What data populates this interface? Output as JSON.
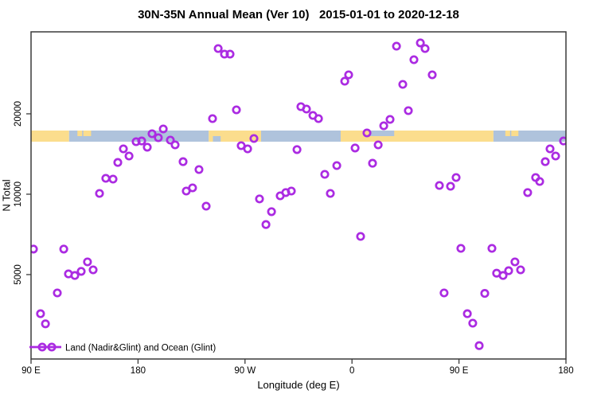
{
  "header": {
    "title": "30N-35N Annual Mean (Ver 10)   2015-01-01 to 2020-12-18"
  },
  "chart_data": {
    "type": "scatter",
    "title": "30N-35N Annual Mean (Ver 10)   2015-01-01 to 2020-12-18",
    "xlabel": "Longitude (deg E)",
    "ylabel": "N Total",
    "x_axis": {
      "min": 90,
      "max": 540,
      "ticks": [
        90,
        180,
        270,
        360,
        450,
        540
      ],
      "tick_labels": [
        "90 E",
        "180",
        "90 W",
        "0",
        "90 E",
        "180"
      ],
      "note": "longitude axis wraps: 90E to 180 to 90W to 0 to 90E to 180"
    },
    "y_axis": {
      "scale": "log",
      "min": 2415,
      "max": 40550,
      "ticks": [
        5000,
        10000,
        20000
      ],
      "tick_labels": [
        "5000",
        "10000",
        "20000"
      ]
    },
    "legend": {
      "label": "Land (Nadir&Glint) and Ocean (Glint)",
      "position": "bottom-left"
    },
    "colors": {
      "marker": "#AB2BE2",
      "land_band": "#FBDD8D",
      "ocean_band": "#AFC3DC",
      "frame": "#3a3a3a"
    },
    "map_band": {
      "description": "land/ocean strip for 30N-35N drawn across plot",
      "segments": [
        {
          "lon0": 90,
          "lon1": 122,
          "surface": "land",
          "half": "full"
        },
        {
          "lon0": 122,
          "lon1": 239.5,
          "surface": "ocean",
          "half": "full"
        },
        {
          "lon0": 239.5,
          "lon1": 283.5,
          "surface": "land",
          "half": "full"
        },
        {
          "lon0": 283.5,
          "lon1": 350.5,
          "surface": "ocean",
          "half": "full"
        },
        {
          "lon0": 350.5,
          "lon1": 479,
          "surface": "land",
          "half": "full"
        },
        {
          "lon0": 479,
          "lon1": 540,
          "surface": "ocean",
          "half": "full"
        },
        {
          "lon0": 129,
          "lon1": 133,
          "surface": "land",
          "half": "top"
        },
        {
          "lon0": 134,
          "lon1": 140.5,
          "surface": "land",
          "half": "top"
        },
        {
          "lon0": 243,
          "lon1": 249.5,
          "surface": "ocean",
          "half": "bottom"
        },
        {
          "lon0": 375.5,
          "lon1": 395.5,
          "surface": "ocean",
          "half": "top"
        },
        {
          "lon0": 489,
          "lon1": 493,
          "surface": "land",
          "half": "top"
        },
        {
          "lon0": 494,
          "lon1": 500,
          "surface": "land",
          "half": "top"
        }
      ]
    },
    "points": [
      [
        92.0,
        6230
      ],
      [
        98.0,
        3570
      ],
      [
        102.1,
        3270
      ],
      [
        112.1,
        4270
      ],
      [
        117.5,
        6230
      ],
      [
        121.5,
        5030
      ],
      [
        126.8,
        4960
      ],
      [
        132.2,
        5140
      ],
      [
        137.5,
        5580
      ],
      [
        142.2,
        5210
      ],
      [
        147.6,
        10070
      ],
      [
        152.9,
        11470
      ],
      [
        159.0,
        11390
      ],
      [
        163.0,
        13150
      ],
      [
        167.7,
        14790
      ],
      [
        172.4,
        13900
      ],
      [
        178.4,
        15730
      ],
      [
        183.1,
        15830
      ],
      [
        187.8,
        15000
      ],
      [
        191.8,
        16840
      ],
      [
        197.1,
        16280
      ],
      [
        201.2,
        17550
      ],
      [
        207.2,
        15950
      ],
      [
        211.2,
        15300
      ],
      [
        217.9,
        13240
      ],
      [
        220.6,
        10280
      ],
      [
        225.9,
        10560
      ],
      [
        231.3,
        12370
      ],
      [
        237.3,
        9020
      ],
      [
        242.7,
        19190
      ],
      [
        247.4,
        35110
      ],
      [
        252.7,
        33460
      ],
      [
        257.4,
        33460
      ],
      [
        262.8,
        20700
      ],
      [
        266.8,
        15200
      ],
      [
        272.2,
        14790
      ],
      [
        277.5,
        16170
      ],
      [
        282.2,
        9600
      ],
      [
        287.6,
        7700
      ],
      [
        292.3,
        8600
      ],
      [
        299.6,
        9860
      ],
      [
        304.3,
        10140
      ],
      [
        309.0,
        10280
      ],
      [
        313.7,
        14690
      ],
      [
        317.0,
        21270
      ],
      [
        321.7,
        20840
      ],
      [
        327.1,
        19730
      ],
      [
        331.8,
        19190
      ],
      [
        337.1,
        11870
      ],
      [
        341.8,
        10070
      ],
      [
        347.2,
        12800
      ],
      [
        353.9,
        26500
      ],
      [
        357.2,
        28000
      ],
      [
        362.6,
        14900
      ],
      [
        367.2,
        6950
      ],
      [
        372.6,
        16960
      ],
      [
        377.3,
        13060
      ],
      [
        382.0,
        15300
      ],
      [
        386.7,
        18040
      ],
      [
        392.0,
        19060
      ],
      [
        397.4,
        35840
      ],
      [
        402.7,
        25780
      ],
      [
        407.4,
        20560
      ],
      [
        412.1,
        31890
      ],
      [
        417.5,
        36850
      ],
      [
        421.5,
        35110
      ],
      [
        427.5,
        28000
      ],
      [
        433.5,
        10780
      ],
      [
        437.5,
        4270
      ],
      [
        442.9,
        10710
      ],
      [
        447.6,
        11550
      ],
      [
        451.6,
        6270
      ],
      [
        457.0,
        3570
      ],
      [
        461.6,
        3290
      ],
      [
        467.0,
        2710
      ],
      [
        471.7,
        4250
      ],
      [
        477.7,
        6270
      ],
      [
        481.7,
        5060
      ],
      [
        487.1,
        4960
      ],
      [
        491.8,
        5170
      ],
      [
        497.1,
        5580
      ],
      [
        501.8,
        5210
      ],
      [
        507.8,
        10140
      ],
      [
        514.5,
        11550
      ],
      [
        517.9,
        11160
      ],
      [
        522.6,
        13240
      ],
      [
        526.6,
        14790
      ],
      [
        531.3,
        13900
      ],
      [
        538.0,
        15830
      ]
    ]
  }
}
